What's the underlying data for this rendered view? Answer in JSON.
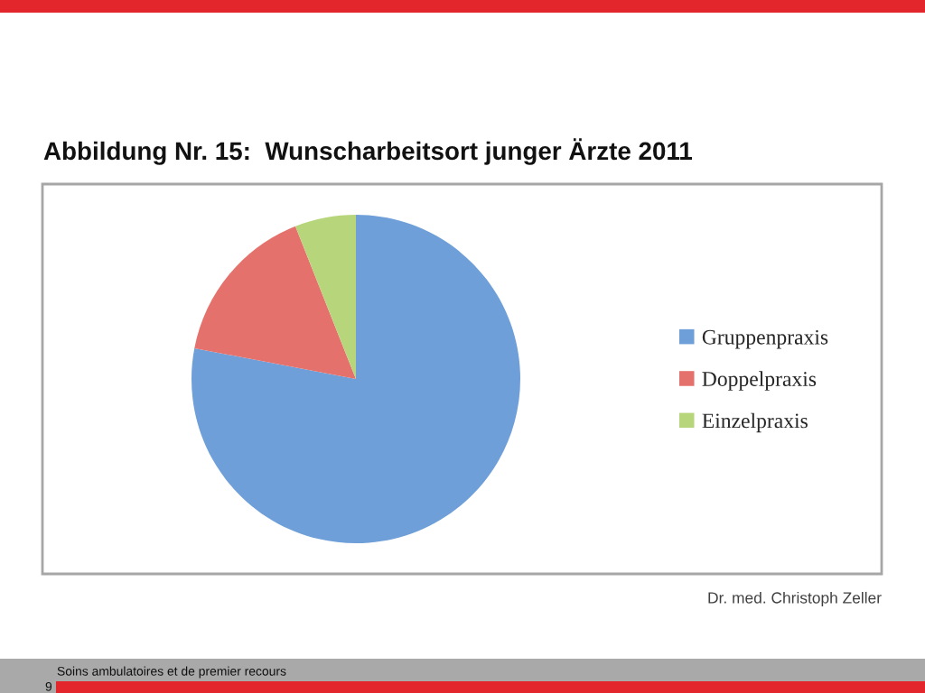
{
  "chart_data": {
    "type": "pie",
    "title": "Abbildung Nr. 15:  Wunscharbeitsort junger Ärzte 2011",
    "categories": [
      "Gruppenpraxis",
      "Doppelpraxis",
      "Einzelpraxis"
    ],
    "values": [
      78,
      16,
      6
    ],
    "colors": [
      "#6f9fd8",
      "#e4716c",
      "#b7d67c"
    ],
    "legend": "right",
    "annotations": [
      "Dr. med. Christoph Zeller",
      "Soins ambulatoires et de premier recours",
      "9"
    ]
  }
}
